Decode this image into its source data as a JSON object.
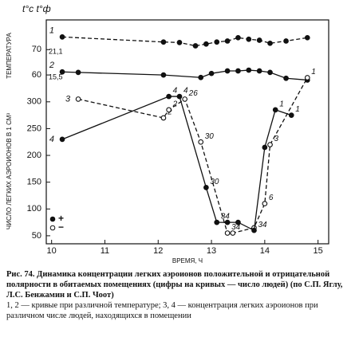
{
  "chart_data": [
    {
      "type": "line",
      "y_title": "ТЕМПЕРАТУРА",
      "unit_title": "t°c t°ф",
      "xlim": [
        9.9,
        15.2
      ],
      "ylim": [
        55,
        77
      ],
      "yticks": [
        70,
        60
      ],
      "y_alt_ticks": [
        {
          "value": 70,
          "label": "21,1"
        },
        {
          "value": 60,
          "label": "15,5"
        }
      ],
      "series": [
        {
          "name": "1",
          "color": "#111",
          "dash": true,
          "marker": "filled",
          "x": [
            10.2,
            12.1,
            12.4,
            12.7,
            12.9,
            13.1,
            13.3,
            13.5,
            13.7,
            13.9,
            14.1,
            14.4,
            14.8
          ],
          "values": [
            75,
            73,
            72.8,
            71.5,
            72.2,
            73,
            73.4,
            74.7,
            74.1,
            73.7,
            72.5,
            73.4,
            74.7
          ]
        },
        {
          "name": "2",
          "color": "#111",
          "dash": false,
          "marker": "filled",
          "x": [
            10.2,
            10.5,
            12.1,
            12.8,
            13.0,
            13.3,
            13.5,
            13.7,
            13.9,
            14.1,
            14.4,
            14.8
          ],
          "values": [
            61.2,
            61,
            60,
            59,
            60.6,
            61.6,
            61.6,
            61.9,
            61.6,
            61,
            58.7,
            58
          ]
        }
      ]
    },
    {
      "type": "line",
      "y_title": "ЧИСЛО ЛЕГКИХ АЭРОИОНОВ В 1 СМ³",
      "x_title": "ВРЕМЯ, Ч",
      "xlim": [
        9.9,
        15.2
      ],
      "ylim": [
        35,
        380
      ],
      "xticks": [
        10,
        11,
        12,
        13,
        14,
        15
      ],
      "yticks": [
        300,
        250,
        200,
        150,
        100,
        50
      ],
      "series": [
        {
          "name": "3",
          "color": "#111",
          "dash": true,
          "marker": "open",
          "x": [
            10.5,
            12.1,
            12.2,
            12.5,
            12.8,
            13.3,
            13.4,
            13.8,
            14.0,
            14.1,
            14.8
          ],
          "values": [
            305,
            270,
            285,
            305,
            225,
            55,
            55,
            65,
            110,
            220,
            345
          ],
          "point_labels": [
            null,
            "2",
            "2",
            "26",
            "30",
            "34",
            null,
            null,
            "6",
            "3",
            "1"
          ]
        },
        {
          "name": "4",
          "color": "#111",
          "dash": false,
          "marker": "filled",
          "x": [
            10.2,
            12.2,
            12.4,
            12.9,
            13.1,
            13.3,
            13.5,
            13.8,
            14.0,
            14.2,
            14.5
          ],
          "values": [
            230,
            310,
            310,
            140,
            75,
            75,
            75,
            60,
            215,
            285,
            275
          ],
          "point_labels": [
            null,
            "4",
            "4",
            "30",
            "34",
            null,
            null,
            "34",
            null,
            "1",
            "1"
          ]
        }
      ],
      "legend": [
        {
          "label": "+",
          "series": 1
        },
        {
          "label": "−",
          "series": 0
        }
      ]
    }
  ],
  "caption": {
    "title": "Рис. 74. Динамика концентрации легких аэроионов положительной и отрицательной полярности в обитаемых помещениях (цифры на кривых — число людей) (по С.П. Яглу, Л.С. Бенжамин и С.П. Чоот)",
    "note": "1, 2 — кривые при различной температуре; 3, 4 — концентрация легких аэроионов при различном числе людей, находящихся в помещении"
  }
}
